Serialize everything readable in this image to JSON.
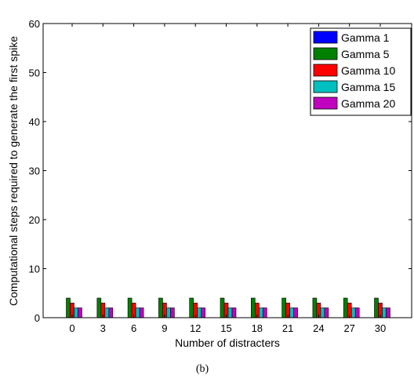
{
  "caption": "(b)",
  "colors": {
    "gamma_1": "#0000ff",
    "gamma_5": "#008000",
    "gamma_10": "#ff0000",
    "gamma_15": "#00bfbf",
    "gamma_20": "#bf00bf"
  },
  "chart_data": {
    "type": "bar",
    "title": "",
    "xlabel": "Number of distracters",
    "ylabel": "Computational steps required to generate the first spike",
    "ylim": [
      0,
      60
    ],
    "yticks": [
      0,
      10,
      20,
      30,
      40,
      50,
      60
    ],
    "categories": [
      "0",
      "3",
      "6",
      "9",
      "12",
      "15",
      "18",
      "21",
      "24",
      "27",
      "30"
    ],
    "legend_position": "top-right",
    "grid": false,
    "series": [
      {
        "name": "Gamma 1",
        "color": "#0000ff",
        "values": [
          0,
          0,
          0,
          0,
          0,
          0,
          0,
          0,
          0,
          0,
          0
        ]
      },
      {
        "name": "Gamma 5",
        "color": "#008000",
        "values": [
          4,
          4,
          4,
          4,
          4,
          4,
          4,
          4,
          4,
          4,
          4
        ]
      },
      {
        "name": "Gamma 10",
        "color": "#ff0000",
        "values": [
          3,
          3,
          3,
          3,
          3,
          3,
          3,
          3,
          3,
          3,
          3
        ]
      },
      {
        "name": "Gamma 15",
        "color": "#00bfbf",
        "values": [
          2,
          2,
          2,
          2,
          2,
          2,
          2,
          2,
          2,
          2,
          2
        ]
      },
      {
        "name": "Gamma 20",
        "color": "#bf00bf",
        "values": [
          2,
          2,
          2,
          2,
          2,
          2,
          2,
          2,
          2,
          2,
          2
        ]
      }
    ]
  }
}
